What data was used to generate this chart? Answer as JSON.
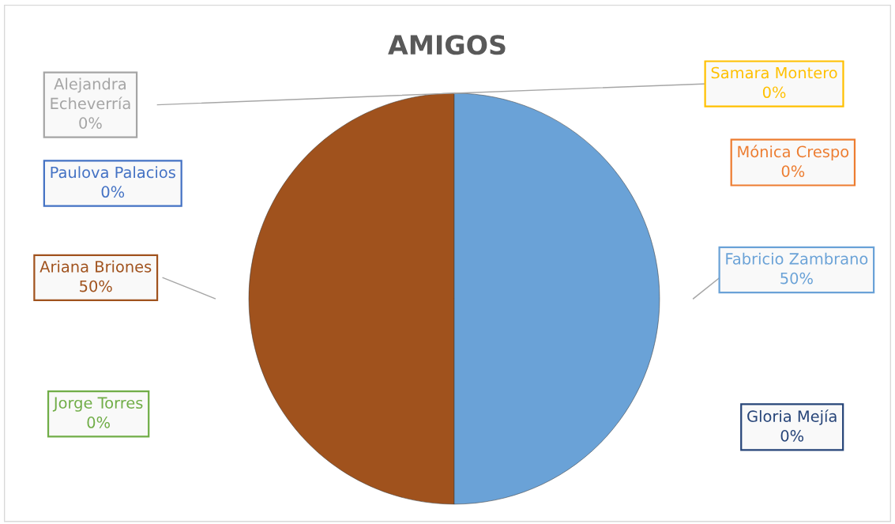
{
  "chart_data": {
    "type": "pie",
    "title": "AMIGOS",
    "categories": [
      "Ariana Briones",
      "Jorge Torres",
      "Gloria Mejía",
      "Fabricio Zambrano",
      "Mónica Crespo",
      "Samara Montero",
      "Alejandra Echeverría",
      "Paulova Palacios"
    ],
    "values": [
      50,
      0,
      0,
      50,
      0,
      0,
      0,
      0
    ],
    "colors": [
      "#a0521d",
      "#70ad47",
      "#264478",
      "#6aa2d7",
      "#ed7d31",
      "#ffc000",
      "#a5a5a5",
      "#4472c4"
    ],
    "value_labels": [
      "50%",
      "0%",
      "0%",
      "50%",
      "0%",
      "0%",
      "0%",
      "0%"
    ],
    "legend": false
  }
}
